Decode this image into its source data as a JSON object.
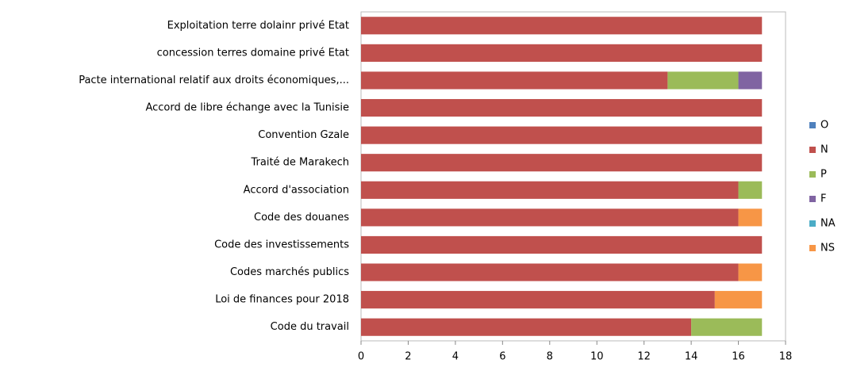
{
  "chart_data": {
    "type": "stacked_barh",
    "categories": [
      "Exploitation terre dolainr privé Etat",
      "concession terres domaine  privé Etat",
      "Pacte international relatif aux droits économiques,...",
      "Accord de libre échange avec la Tunisie",
      "Convention Gzale",
      "Traité de Marakech",
      "Accord d'association",
      "Code des douanes",
      "Code des investissements",
      "Codes marchés publics",
      "Loi de finances pour 2018",
      "Code du travail"
    ],
    "series": [
      {
        "name": "O",
        "color": "#4f81bd",
        "values": [
          0,
          0,
          0,
          0,
          0,
          0,
          0,
          0,
          0,
          0,
          0,
          0
        ]
      },
      {
        "name": "N",
        "color": "#c0504d",
        "values": [
          17,
          17,
          13,
          17,
          17,
          17,
          16,
          16,
          17,
          16,
          15,
          14
        ]
      },
      {
        "name": "P",
        "color": "#9bbb59",
        "values": [
          0,
          0,
          3,
          0,
          0,
          0,
          1,
          0,
          0,
          0,
          0,
          3
        ]
      },
      {
        "name": "F",
        "color": "#8064a2",
        "values": [
          0,
          0,
          1,
          0,
          0,
          0,
          0,
          0,
          0,
          0,
          0,
          0
        ]
      },
      {
        "name": "NA",
        "color": "#4bacc6",
        "values": [
          0,
          0,
          0,
          0,
          0,
          0,
          0,
          0,
          0,
          0,
          0,
          0
        ]
      },
      {
        "name": "NS",
        "color": "#f79646",
        "values": [
          0,
          0,
          0,
          0,
          0,
          0,
          0,
          1,
          0,
          1,
          2,
          0
        ]
      }
    ],
    "xlim": [
      0,
      18
    ],
    "xticks": [
      0,
      2,
      4,
      6,
      8,
      10,
      12,
      14,
      16,
      18
    ],
    "grid": false,
    "legend": "right"
  }
}
